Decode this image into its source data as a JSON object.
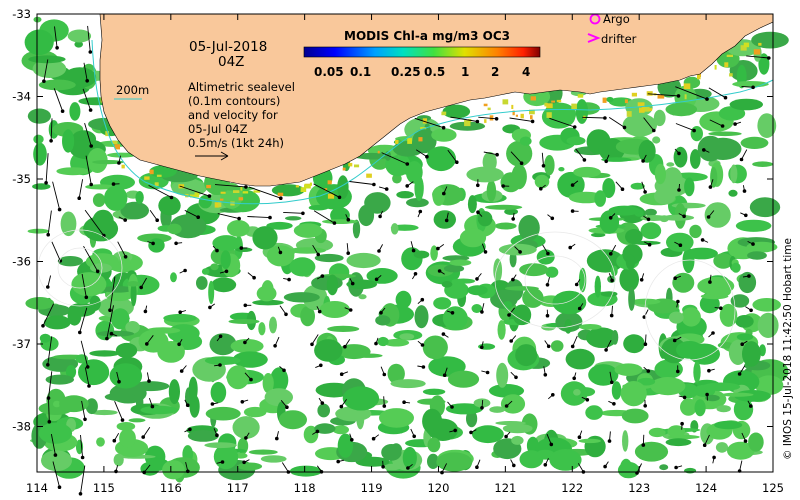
{
  "map": {
    "date_line1": "05-Jul-2018",
    "date_line2": "04Z",
    "depth_contour_label": "200m",
    "annotation_lines": [
      "Altimetric sealevel",
      "(0.1m contours)",
      "and velocity for",
      "05-Jul 04Z",
      "0.5m/s (1kt 24h)"
    ],
    "colorbar": {
      "title": "MODIS Chl-a mg/m3 OC3",
      "ticks": [
        "0.05",
        "0.1",
        "0.25",
        "0.5",
        "1",
        "2",
        "4"
      ]
    },
    "legend": {
      "argo_label": "Argo",
      "drifter_label": "drifter",
      "argo_color": "#ff00ff",
      "drifter_color": "#ff00ff"
    },
    "x_axis_ticks": [
      "114",
      "115",
      "116",
      "117",
      "118",
      "119",
      "120",
      "121",
      "122",
      "123",
      "124",
      "125"
    ],
    "y_axis_ticks": [
      "-33",
      "-34",
      "-35",
      "-36",
      "-37",
      "-38"
    ],
    "side_credit": "© IMOS 15-Jul-2018 11:42:50 Hobart time",
    "colors": {
      "land": "#f9c89b",
      "contour_200m": "#33cccc",
      "chl_dominant": "#33bb44"
    }
  }
}
